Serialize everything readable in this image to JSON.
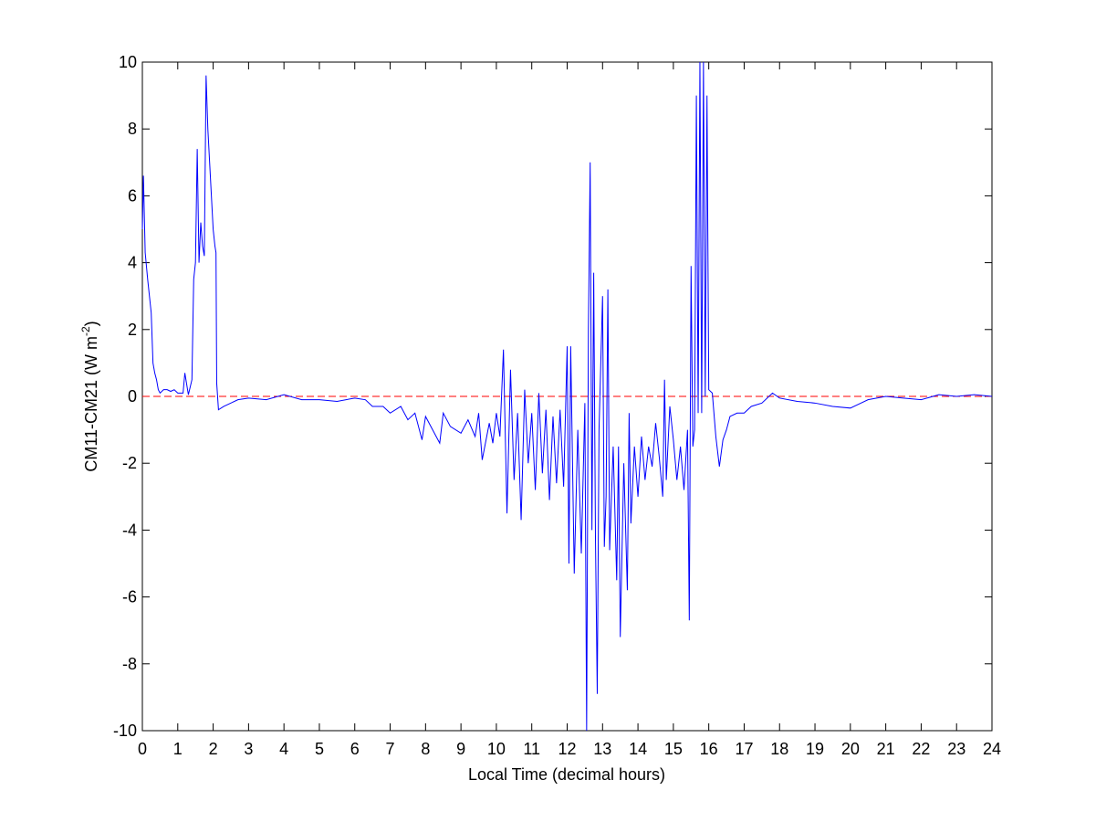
{
  "chart_data": {
    "type": "line",
    "xlabel": "Local Time (decimal hours)",
    "ylabel": [
      "CM11-CM21 (W m",
      "-2",
      ")"
    ],
    "xlim": [
      0,
      24
    ],
    "ylim": [
      -10,
      10
    ],
    "xticks": [
      0,
      1,
      2,
      3,
      4,
      5,
      6,
      7,
      8,
      9,
      10,
      11,
      12,
      13,
      14,
      15,
      16,
      17,
      18,
      19,
      20,
      21,
      22,
      23,
      24
    ],
    "yticks": [
      -10,
      -8,
      -6,
      -4,
      -2,
      0,
      2,
      4,
      6,
      8,
      10
    ],
    "reference_line": {
      "value": 0,
      "color": "#ff0000"
    },
    "series": [
      {
        "color": "#0000ff",
        "x": [
          0,
          0.03,
          0.08,
          0.15,
          0.25,
          0.3,
          0.35,
          0.4,
          0.45,
          0.5,
          0.6,
          0.7,
          0.8,
          0.9,
          1.0,
          1.15,
          1.2,
          1.3,
          1.4,
          1.45,
          1.5,
          1.55,
          1.6,
          1.65,
          1.7,
          1.75,
          1.8,
          1.85,
          1.9,
          1.95,
          2.0,
          2.05,
          2.08,
          2.1,
          2.15,
          2.3,
          2.5,
          2.7,
          3,
          3.5,
          4,
          4.5,
          5,
          5.5,
          6,
          6.3,
          6.5,
          6.8,
          7,
          7.3,
          7.5,
          7.7,
          7.9,
          8.0,
          8.2,
          8.4,
          8.5,
          8.7,
          9.0,
          9.2,
          9.4,
          9.5,
          9.6,
          9.8,
          9.9,
          10.0,
          10.1,
          10.2,
          10.3,
          10.4,
          10.5,
          10.6,
          10.7,
          10.8,
          10.9,
          11.0,
          11.1,
          11.2,
          11.3,
          11.4,
          11.5,
          11.6,
          11.7,
          11.8,
          11.9,
          12.0,
          12.05,
          12.1,
          12.2,
          12.3,
          12.4,
          12.5,
          12.55,
          12.6,
          12.65,
          12.7,
          12.75,
          12.8,
          12.85,
          12.9,
          13.0,
          13.05,
          13.1,
          13.15,
          13.2,
          13.3,
          13.4,
          13.45,
          13.5,
          13.6,
          13.7,
          13.75,
          13.8,
          13.9,
          14.0,
          14.1,
          14.2,
          14.3,
          14.4,
          14.5,
          14.6,
          14.7,
          14.75,
          14.8,
          14.9,
          15.0,
          15.1,
          15.2,
          15.3,
          15.4,
          15.45,
          15.5,
          15.55,
          15.6,
          15.65,
          15.7,
          15.75,
          15.8,
          15.85,
          15.9,
          15.95,
          16.0,
          16.1,
          16.2,
          16.3,
          16.4,
          16.5,
          16.6,
          16.8,
          17,
          17.2,
          17.5,
          17.8,
          18,
          18.5,
          19,
          19.5,
          20,
          20.3,
          20.5,
          21,
          21.5,
          22,
          22.5,
          23,
          23.5,
          24
        ],
        "values": [
          5,
          6.6,
          4.3,
          3.5,
          2.5,
          1,
          0.7,
          0.5,
          0.2,
          0.1,
          0.2,
          0.2,
          0.15,
          0.2,
          0.1,
          0.1,
          0.7,
          0.05,
          0.5,
          3.5,
          4,
          7.4,
          4,
          5.2,
          4.5,
          4.2,
          9.6,
          8,
          7,
          6,
          5,
          4.5,
          4.3,
          0.4,
          -0.4,
          -0.3,
          -0.2,
          -0.1,
          -0.05,
          -0.1,
          0.05,
          -0.1,
          -0.1,
          -0.15,
          -0.05,
          -0.1,
          -0.3,
          -0.3,
          -0.5,
          -0.3,
          -0.7,
          -0.5,
          -1.3,
          -0.6,
          -1,
          -1.4,
          -0.5,
          -0.9,
          -1.1,
          -0.7,
          -1.2,
          -0.5,
          -1.9,
          -0.8,
          -1.4,
          -0.5,
          -1.2,
          1.4,
          -3.5,
          0.8,
          -2.5,
          -0.5,
          -3.7,
          0.2,
          -2,
          -0.5,
          -2.8,
          0.1,
          -2.3,
          -0.4,
          -3.1,
          -0.6,
          -2.6,
          -0.4,
          -2.7,
          1.5,
          -5,
          1.5,
          -5.3,
          -1,
          -4.7,
          -0.2,
          -10,
          2,
          7,
          -4,
          3.7,
          -4.3,
          -8.9,
          -1,
          3,
          -4.5,
          -3,
          3.2,
          -4.6,
          -1.5,
          -5.5,
          -1.5,
          -7.2,
          -2,
          -5.8,
          -0.5,
          -3.8,
          -1.5,
          -3,
          -1.2,
          -2.5,
          -1.5,
          -2.1,
          -0.8,
          -1.8,
          -3,
          0.5,
          -2.5,
          -0.3,
          -1.3,
          -2.5,
          -1.5,
          -2.8,
          -1,
          -6.7,
          3.9,
          -1.5,
          -1,
          9,
          -0.5,
          10,
          -0.5,
          10,
          0,
          9,
          0.2,
          0.1,
          -1.2,
          -2.1,
          -1.3,
          -1,
          -0.6,
          -0.5,
          -0.5,
          -0.3,
          -0.2,
          0.1,
          -0.05,
          -0.15,
          -0.2,
          -0.3,
          -0.35,
          -0.2,
          -0.1,
          0,
          -0.05,
          -0.1,
          0.05,
          0,
          0.05,
          0
        ]
      }
    ]
  }
}
